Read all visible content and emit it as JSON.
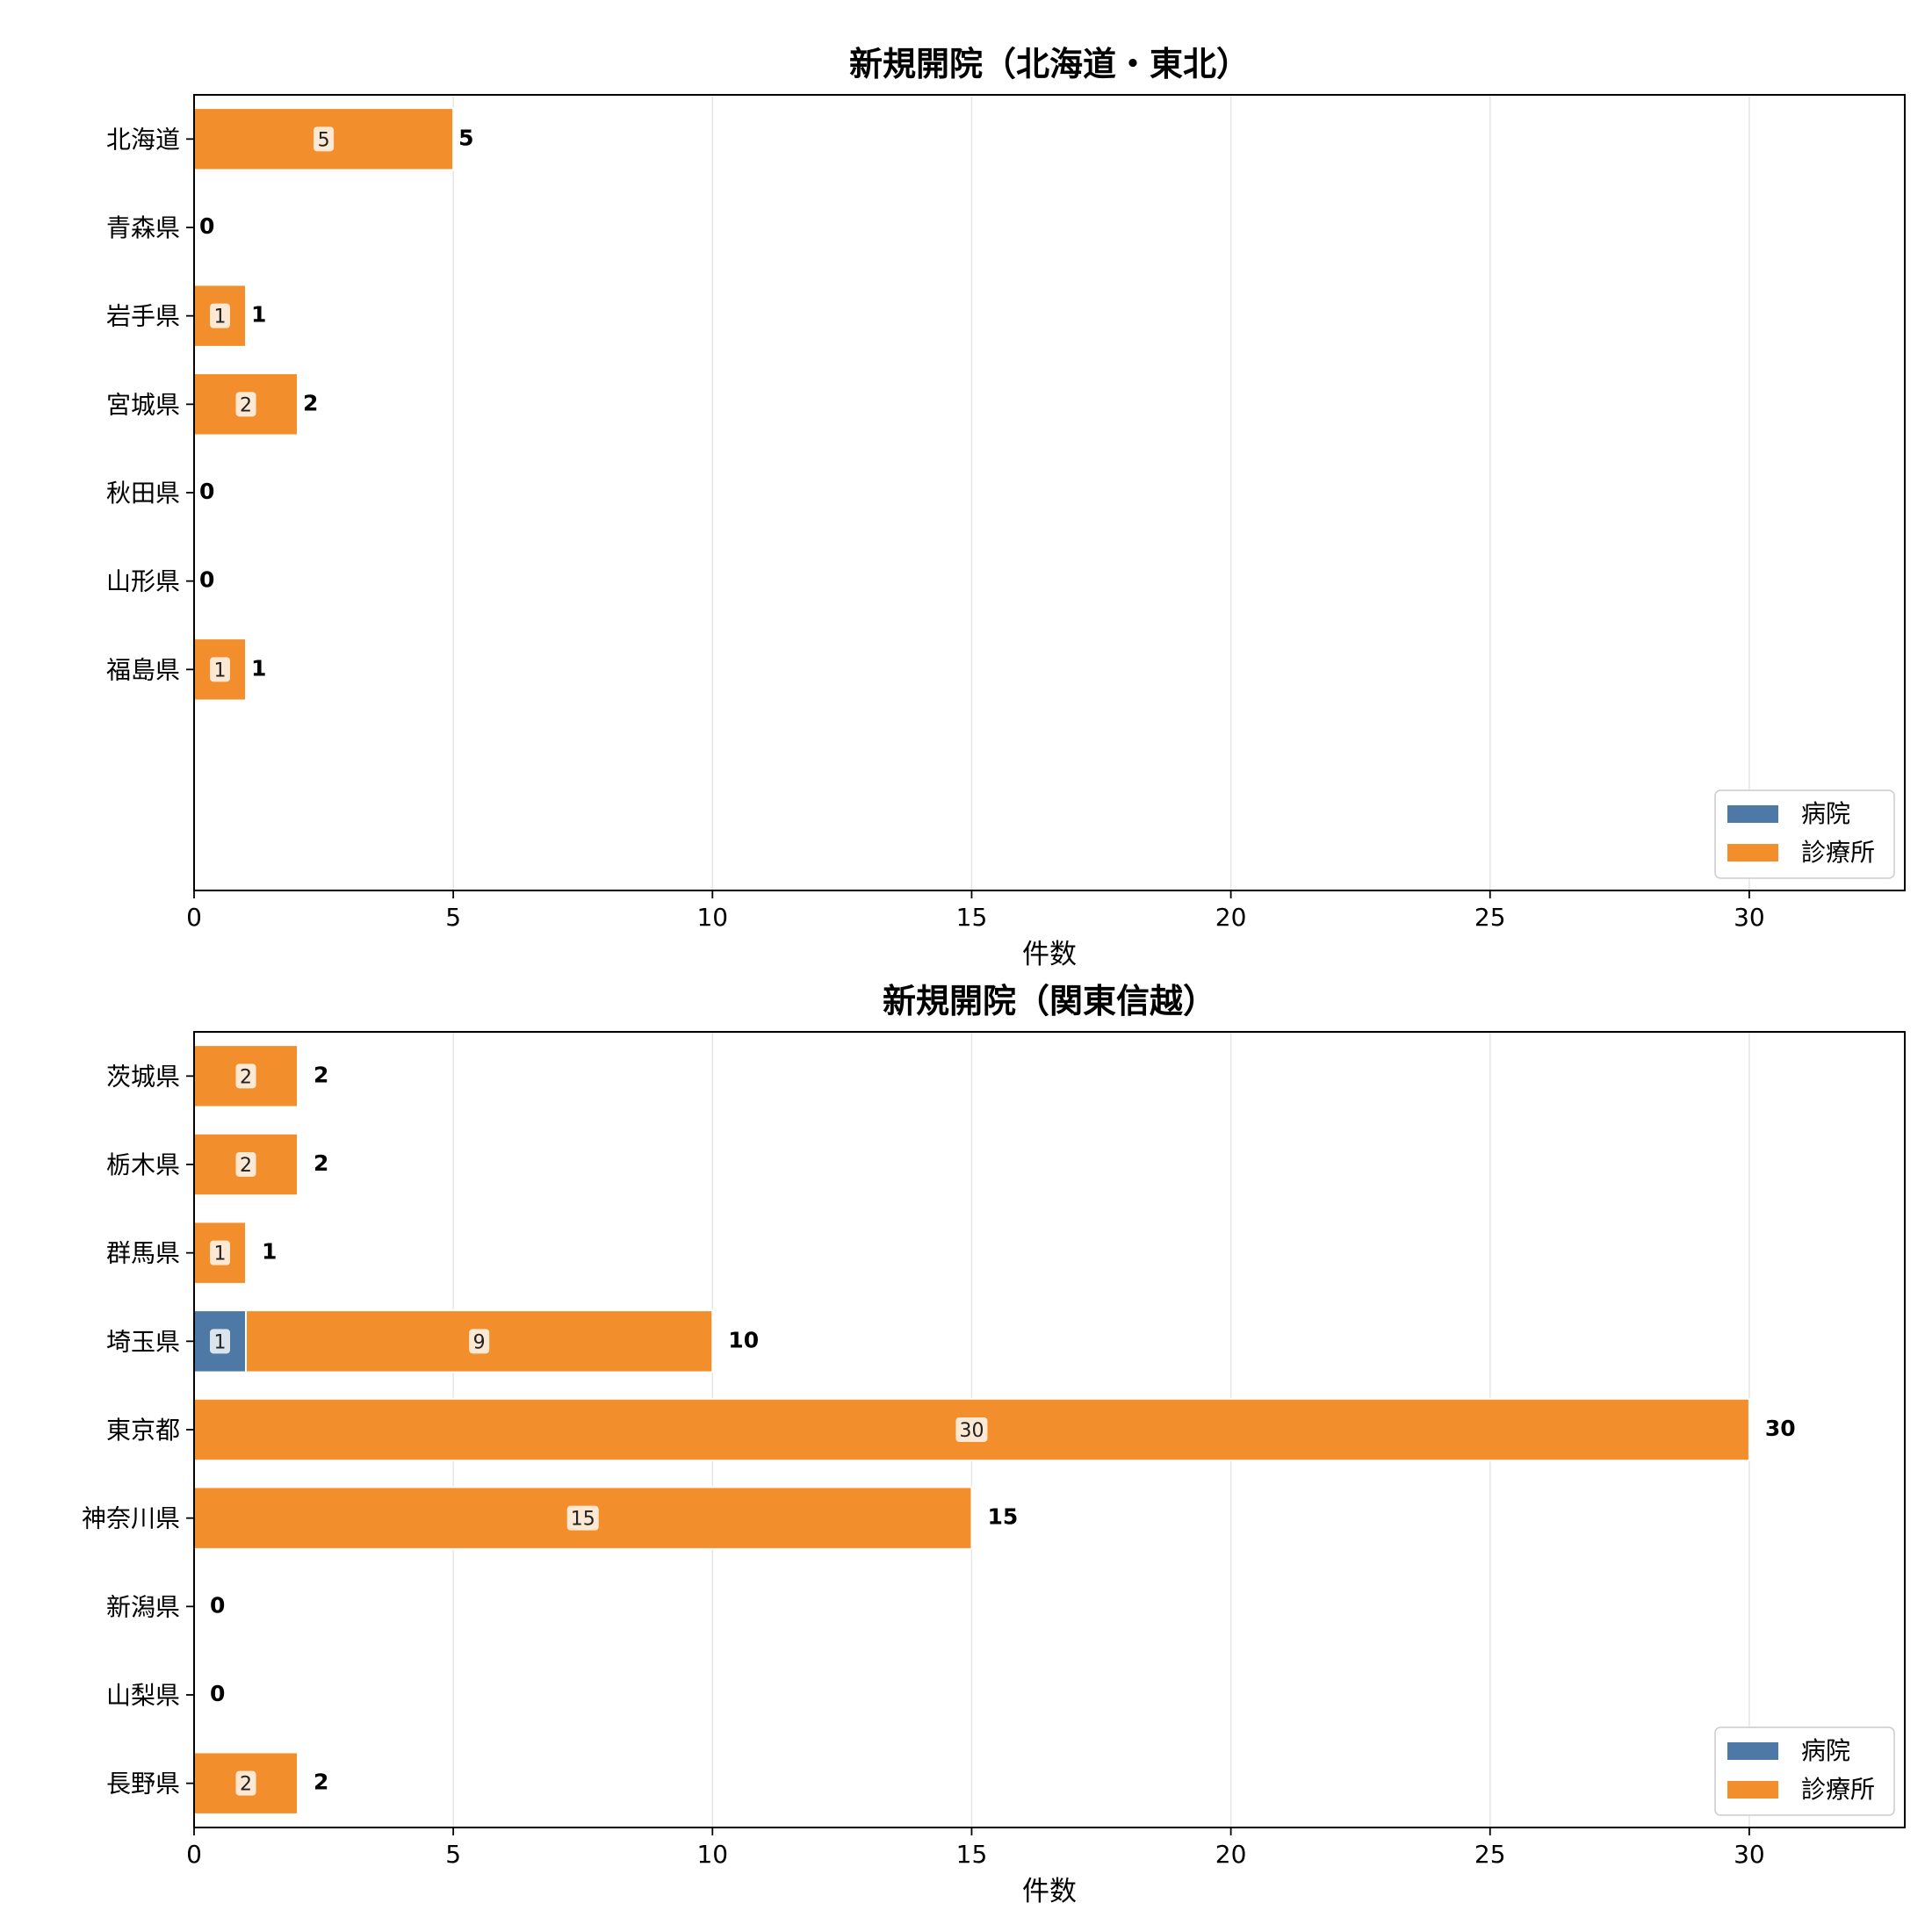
{
  "chart_data": [
    {
      "type": "bar",
      "orientation": "horizontal",
      "stacked": true,
      "title": "新規開院（北海道・東北）",
      "xlabel": "件数",
      "ylabel": "",
      "xlim": [
        0,
        33
      ],
      "xticks": [
        "0",
        "5",
        "10",
        "15",
        "20",
        "25",
        "30"
      ],
      "grid": "vertical",
      "legend_position": "lower-right",
      "categories": [
        "北海道",
        "青森県",
        "岩手県",
        "宮城県",
        "秋田県",
        "山形県",
        "福島県"
      ],
      "series": [
        {
          "name": "病院",
          "color": "#4e79a7",
          "values": [
            0,
            0,
            0,
            0,
            0,
            0,
            0
          ]
        },
        {
          "name": "診療所",
          "color": "#f28e2b",
          "values": [
            5,
            0,
            1,
            2,
            0,
            0,
            1
          ]
        }
      ],
      "totals": [
        5,
        0,
        1,
        2,
        0,
        0,
        1
      ],
      "empty_slots_below": 2
    },
    {
      "type": "bar",
      "orientation": "horizontal",
      "stacked": true,
      "title": "新規開院（関東信越）",
      "xlabel": "件数",
      "ylabel": "",
      "xlim": [
        0,
        33
      ],
      "xticks": [
        "0",
        "5",
        "10",
        "15",
        "20",
        "25",
        "30"
      ],
      "grid": "vertical",
      "legend_position": "lower-right",
      "categories": [
        "茨城県",
        "栃木県",
        "群馬県",
        "埼玉県",
        "東京都",
        "神奈川県",
        "新潟県",
        "山梨県",
        "長野県"
      ],
      "series": [
        {
          "name": "病院",
          "color": "#4e79a7",
          "values": [
            0,
            0,
            0,
            1,
            0,
            0,
            0,
            0,
            0
          ]
        },
        {
          "name": "診療所",
          "color": "#f28e2b",
          "values": [
            2,
            2,
            1,
            9,
            30,
            15,
            0,
            0,
            2
          ]
        }
      ],
      "totals": [
        2,
        2,
        1,
        10,
        30,
        15,
        0,
        0,
        2
      ],
      "empty_slots_below": 0
    }
  ]
}
